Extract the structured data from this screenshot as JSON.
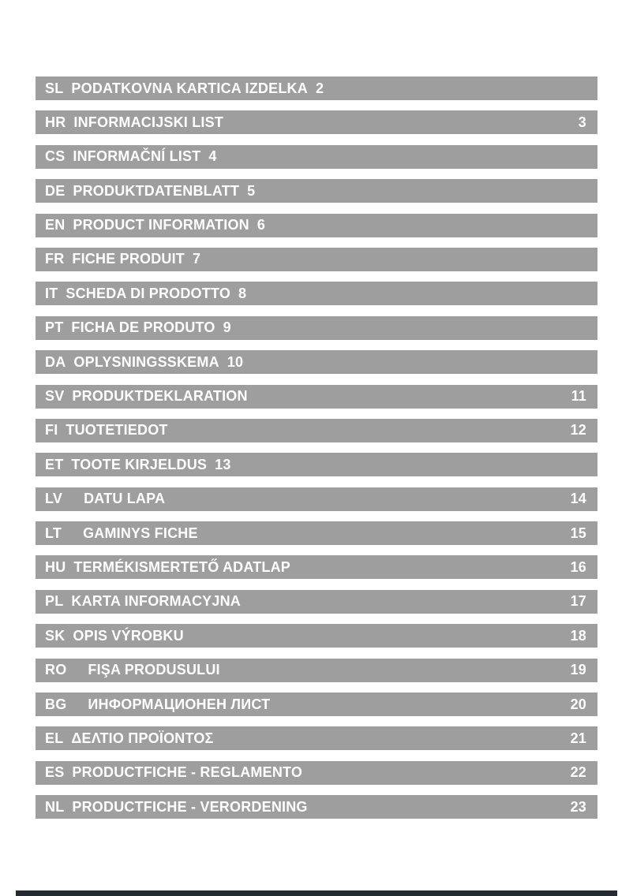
{
  "page": {
    "background_color": "#ffffff",
    "bar_color": "#9e9e9e",
    "bar_text_color": "#ffffff",
    "footer_rule_color": "#242b33"
  },
  "toc": {
    "rows": [
      {
        "code": "SL",
        "title": "PODATKOVNA KARTICA IZDELKA",
        "page": "2",
        "page_position": "inline",
        "gap": "normal"
      },
      {
        "code": "HR",
        "title": "INFORMACIJSKI LIST",
        "page": "3",
        "page_position": "right",
        "gap": "normal"
      },
      {
        "code": "CS",
        "title": "INFORMAČNÍ LIST",
        "page": "4",
        "page_position": "inline",
        "gap": "normal"
      },
      {
        "code": "DE",
        "title": "PRODUKTDATENBLATT",
        "page": "5",
        "page_position": "inline",
        "gap": "normal"
      },
      {
        "code": "EN",
        "title": "PRODUCT INFORMATION",
        "page": "6",
        "page_position": "inline",
        "gap": "normal"
      },
      {
        "code": "FR",
        "title": "FICHE PRODUIT",
        "page": "7",
        "page_position": "inline",
        "gap": "normal"
      },
      {
        "code": "IT",
        "title": "SCHEDA DI PRODOTTO",
        "page": "8",
        "page_position": "inline",
        "gap": "normal"
      },
      {
        "code": "PT",
        "title": "FICHA DE PRODUTO",
        "page": "9",
        "page_position": "inline",
        "gap": "normal"
      },
      {
        "code": "DA",
        "title": "OPLYSNINGSSKEMA",
        "page": "10",
        "page_position": "inline",
        "gap": "normal"
      },
      {
        "code": "SV",
        "title": "PRODUKTDEKLARATION",
        "page": "11",
        "page_position": "right",
        "gap": "normal"
      },
      {
        "code": "FI",
        "title": "TUOTETIEDOT",
        "page": "12",
        "page_position": "right",
        "gap": "normal"
      },
      {
        "code": "ET",
        "title": "TOOTE KIRJELDUS",
        "page": "13",
        "page_position": "inline",
        "gap": "normal"
      },
      {
        "code": "LV",
        "title": "DATU LAPA",
        "page": "14",
        "page_position": "right",
        "gap": "wide"
      },
      {
        "code": "LT",
        "title": "GAMINYS FICHE",
        "page": "15",
        "page_position": "right",
        "gap": "wide"
      },
      {
        "code": "HU",
        "title": "TERMÉKISMERTETŐ ADATLAP",
        "page": "16",
        "page_position": "right",
        "gap": "normal"
      },
      {
        "code": "PL",
        "title": "KARTA INFORMACYJNA",
        "page": "17",
        "page_position": "right",
        "gap": "normal"
      },
      {
        "code": "SK",
        "title": "OPIS VÝROBKU",
        "page": "18",
        "page_position": "right",
        "gap": "normal"
      },
      {
        "code": "RO",
        "title": "FIŞA PRODUSULUI",
        "page": "19",
        "page_position": "right",
        "gap": "wide"
      },
      {
        "code": "BG",
        "title": "ИНФОРМАЦИОНЕН ЛИСТ",
        "page": "20",
        "page_position": "right",
        "gap": "wide"
      },
      {
        "code": "EL",
        "title": "ΔΕΛΤΙΟ ΠΡΟΪΟΝΤΟΣ",
        "page": "21",
        "page_position": "right",
        "gap": "normal"
      },
      {
        "code": "ES",
        "title": "PRODUCTFICHE - REGLAMENTO",
        "page": "22",
        "page_position": "right",
        "gap": "normal"
      },
      {
        "code": "NL",
        "title": "PRODUCTFICHE - VERORDENING",
        "page": "23",
        "page_position": "right",
        "gap": "normal"
      }
    ]
  }
}
